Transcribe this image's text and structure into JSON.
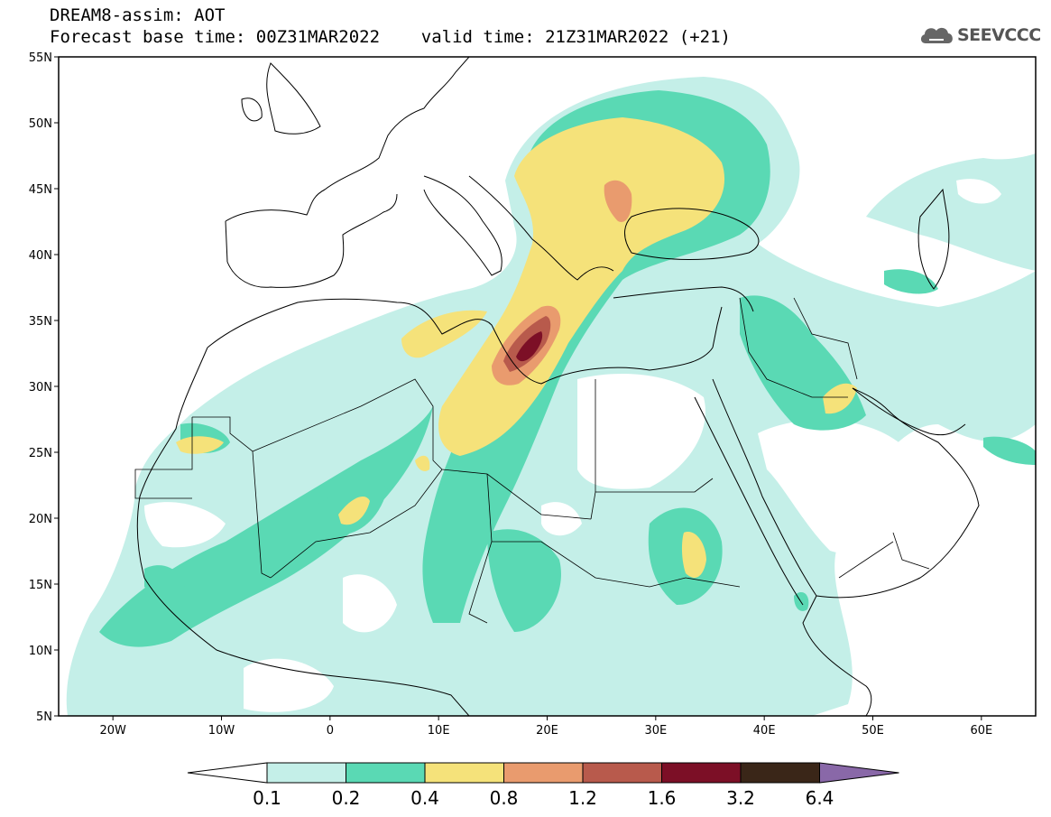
{
  "header": {
    "line1": "DREAM8-assim: AOT",
    "line2": "Forecast base time: 00Z31MAR2022    valid time: 21Z31MAR2022 (+21)"
  },
  "logo": {
    "text": "SEEVCCC",
    "icon": "cloud-icon"
  },
  "map": {
    "lon_range": [
      -25,
      65
    ],
    "lat_range": [
      5,
      55
    ],
    "lat_ticks": [
      {
        "value": 55,
        "label": "55N"
      },
      {
        "value": 50,
        "label": "50N"
      },
      {
        "value": 45,
        "label": "45N"
      },
      {
        "value": 40,
        "label": "40N"
      },
      {
        "value": 35,
        "label": "35N"
      },
      {
        "value": 30,
        "label": "30N"
      },
      {
        "value": 25,
        "label": "25N"
      },
      {
        "value": 20,
        "label": "20N"
      },
      {
        "value": 15,
        "label": "15N"
      },
      {
        "value": 10,
        "label": "10N"
      },
      {
        "value": 5,
        "label": "5N"
      }
    ],
    "lon_ticks": [
      {
        "value": -20,
        "label": "20W"
      },
      {
        "value": -10,
        "label": "10W"
      },
      {
        "value": 0,
        "label": "0"
      },
      {
        "value": 10,
        "label": "10E"
      },
      {
        "value": 20,
        "label": "20E"
      },
      {
        "value": 30,
        "label": "30E"
      },
      {
        "value": 40,
        "label": "40E"
      },
      {
        "value": 50,
        "label": "50E"
      },
      {
        "value": 60,
        "label": "60E"
      }
    ]
  },
  "colorbar": {
    "labels": [
      "0.1",
      "0.2",
      "0.4",
      "0.8",
      "1.2",
      "1.6",
      "3.2",
      "6.4"
    ],
    "colors": [
      "#c4efe8",
      "#5ad9b4",
      "#f5e27a",
      "#e99b6e",
      "#b85a4c",
      "#7c0f26",
      "#3a2618",
      "#8968a8"
    ]
  }
}
